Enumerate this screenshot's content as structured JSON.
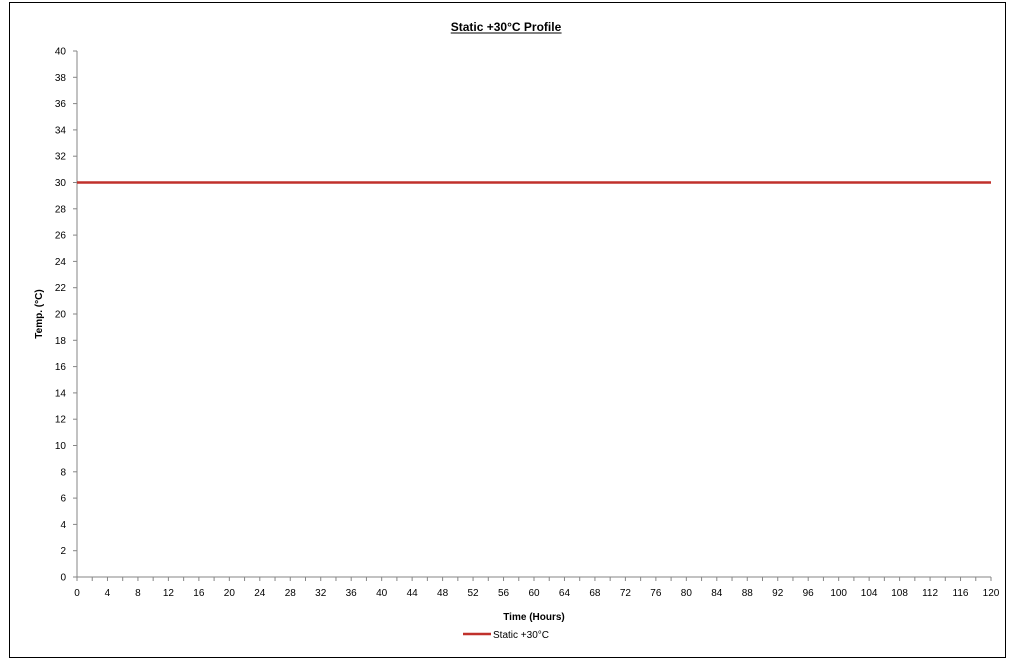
{
  "chart_data": {
    "type": "line",
    "title": "Static +30°C Profile",
    "xlabel": "Time (Hours)",
    "ylabel": "Temp. (°C)",
    "xlim": [
      0,
      120
    ],
    "ylim": [
      0,
      40
    ],
    "x_ticks": [
      0,
      4,
      8,
      12,
      16,
      20,
      24,
      28,
      32,
      36,
      40,
      44,
      48,
      52,
      56,
      60,
      64,
      68,
      72,
      76,
      80,
      84,
      88,
      92,
      96,
      100,
      104,
      108,
      112,
      116,
      120
    ],
    "y_ticks": [
      0,
      2,
      4,
      6,
      8,
      10,
      12,
      14,
      16,
      18,
      20,
      22,
      24,
      26,
      28,
      30,
      32,
      34,
      36,
      38,
      40
    ],
    "grid": false,
    "legend_position": "bottom",
    "series": [
      {
        "name": "Static +30°C",
        "color": "#c0312b",
        "x": [
          0,
          120
        ],
        "y": [
          30,
          30
        ]
      }
    ]
  }
}
